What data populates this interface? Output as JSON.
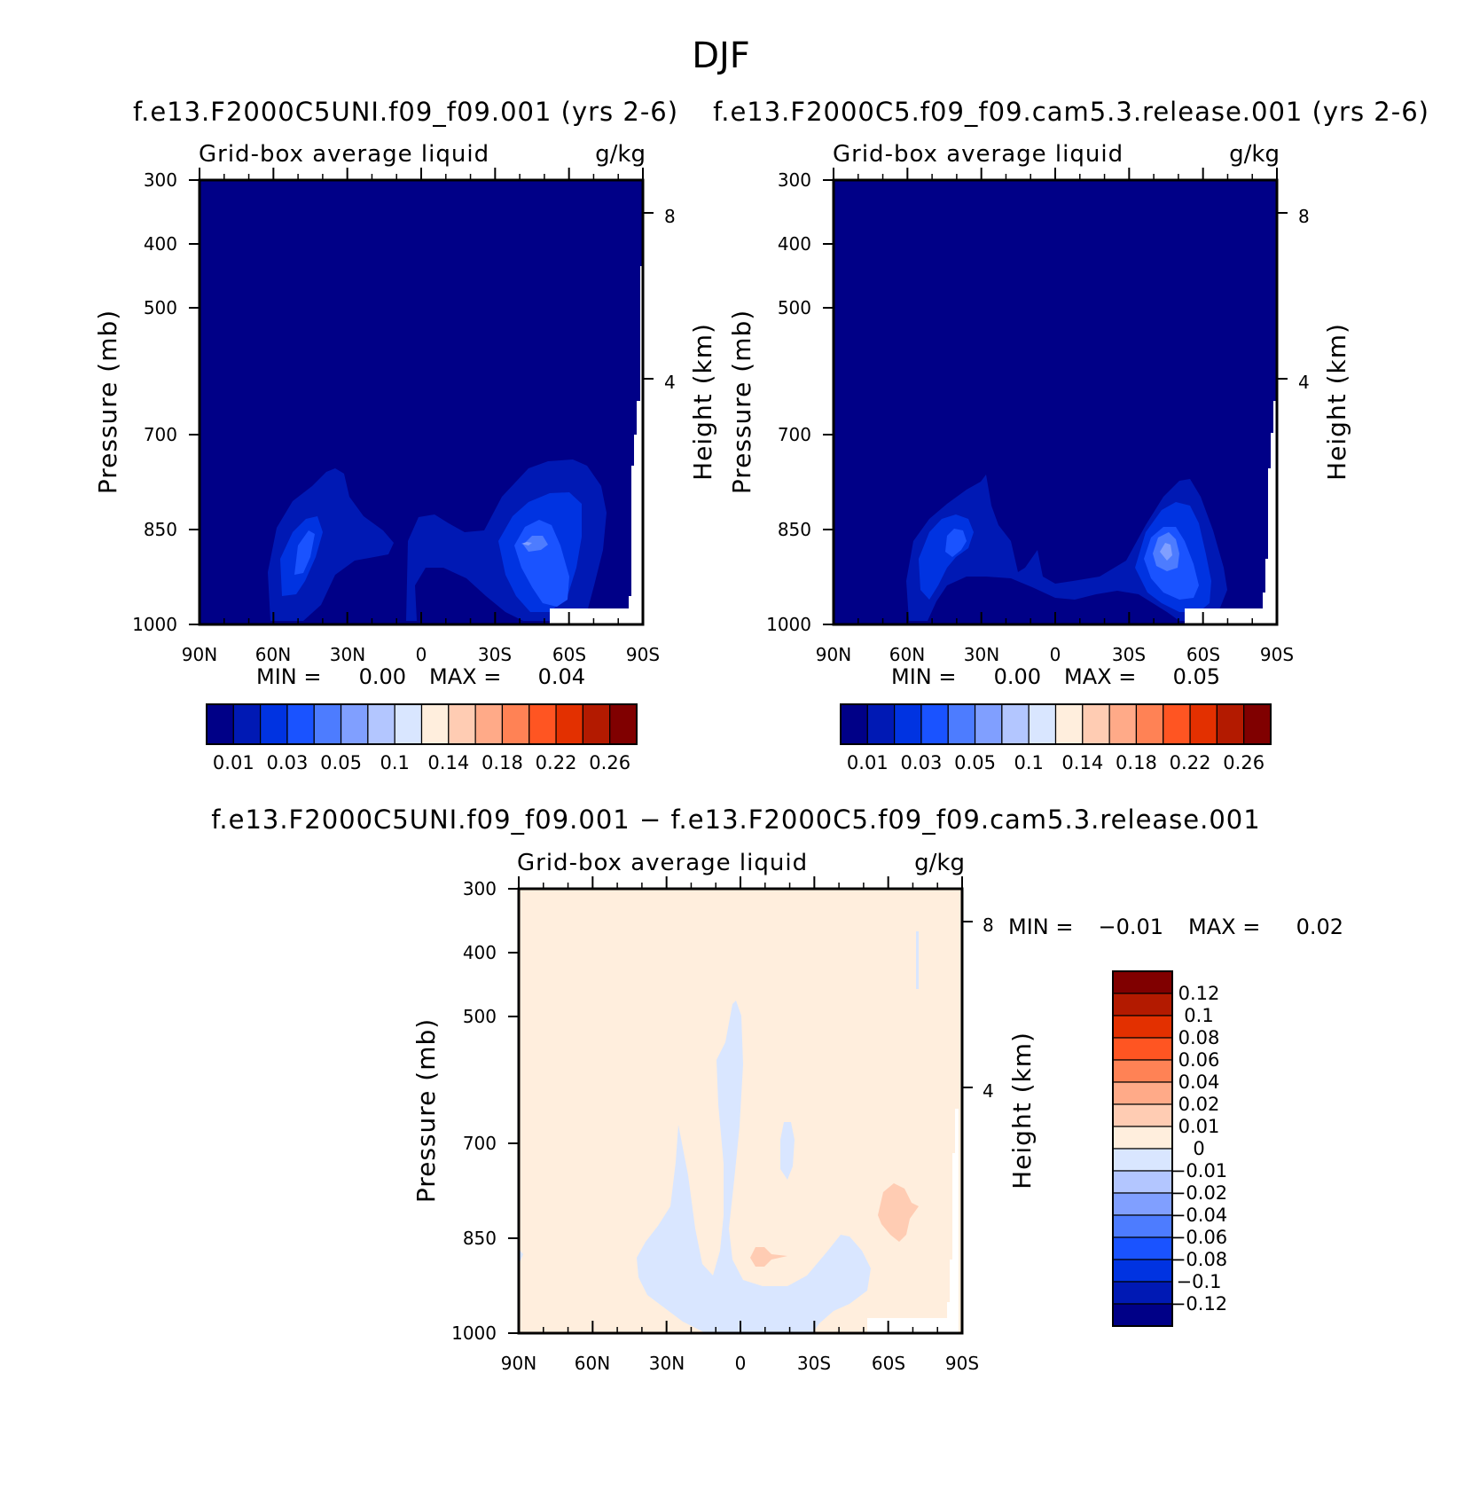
{
  "figure": {
    "title": "DJF",
    "pressure_axis_label": "Pressure (mb)",
    "height_axis_label": "Height (km)",
    "lat_ticks": [
      "90N",
      "60N",
      "30N",
      "0",
      "30S",
      "60S",
      "90S"
    ],
    "pressure_ticks": [
      "300",
      "400",
      "500",
      "700",
      "850",
      "1000"
    ],
    "height_ticks": [
      "8",
      "4"
    ],
    "min_label": "MIN =",
    "max_label": "MAX ="
  },
  "colors": {
    "abs_levels": [
      "#000087",
      "#0019b4",
      "#0033e1",
      "#1a53ff",
      "#4d7cff",
      "#809fff",
      "#b3c6ff",
      "#d9e6ff",
      "#ffeedd",
      "#ffccb3",
      "#ffaa88",
      "#ff8255",
      "#ff5522",
      "#e33000",
      "#b31a00",
      "#800000"
    ],
    "diff_levels": [
      "#000087",
      "#0019b4",
      "#0033e1",
      "#1a53ff",
      "#4d7cff",
      "#809fff",
      "#b3c6ff",
      "#d9e6ff",
      "#ffeedd",
      "#ffccb3",
      "#ffaa88",
      "#ff8255",
      "#ff5522",
      "#e33000",
      "#b31a00",
      "#800000"
    ]
  },
  "chart_data": [
    {
      "type": "contour",
      "title": "f.e13.F2000C5UNI.f09_f09.001 (yrs 2-6)",
      "subtitle": "Grid-box average liquid",
      "units": "g/kg",
      "min": "0.00",
      "max": "0.04",
      "colorbar_labels": [
        "0.01",
        "0.03",
        "0.05",
        "0.1",
        "0.14",
        "0.18",
        "0.22",
        "0.26"
      ],
      "xlim": [
        "90N",
        "90S"
      ],
      "ylim": [
        1000,
        300
      ]
    },
    {
      "type": "contour",
      "title": "f.e13.F2000C5.f09_f09.cam5.3.release.001 (yrs 2-6)",
      "subtitle": "Grid-box average liquid",
      "units": "g/kg",
      "min": "0.00",
      "max": "0.05",
      "colorbar_labels": [
        "0.01",
        "0.03",
        "0.05",
        "0.1",
        "0.14",
        "0.18",
        "0.22",
        "0.26"
      ],
      "xlim": [
        "90N",
        "90S"
      ],
      "ylim": [
        1000,
        300
      ]
    },
    {
      "type": "contour",
      "title": "f.e13.F2000C5UNI.f09_f09.001 − f.e13.F2000C5.f09_f09.cam5.3.release.001",
      "subtitle": "Grid-box average liquid",
      "units": "g/kg",
      "min": "−0.01",
      "max": "0.02",
      "colorbar_labels": [
        "0.12",
        "0.1",
        "0.08",
        "0.06",
        "0.04",
        "0.02",
        "0.01",
        "0",
        "−0.01",
        "−0.02",
        "−0.04",
        "−0.06",
        "−0.08",
        "−0.1",
        "−0.12"
      ],
      "xlim": [
        "90N",
        "90S"
      ],
      "ylim": [
        1000,
        300
      ]
    }
  ]
}
